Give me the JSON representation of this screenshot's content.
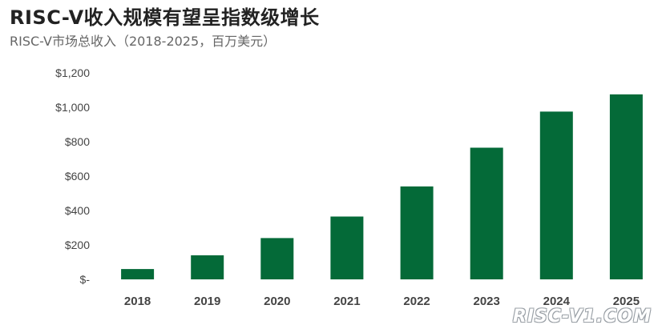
{
  "chart_data": {
    "type": "bar",
    "title": "RISC-V收入规模有望呈指数级增长",
    "subtitle": "RISC-V市场总收入（2018-2025，百万美元）",
    "categories": [
      "2018",
      "2019",
      "2020",
      "2021",
      "2022",
      "2023",
      "2024",
      "2025"
    ],
    "values": [
      60,
      140,
      240,
      365,
      540,
      765,
      975,
      1075
    ],
    "ylim": [
      0,
      1200
    ],
    "yticks": [
      0,
      200,
      400,
      600,
      800,
      1000,
      1200
    ],
    "ytick_labels": [
      "$-",
      "$200",
      "$400",
      "$600",
      "$800",
      "$1,000",
      "$1,200"
    ],
    "xlabel": "",
    "ylabel": "",
    "grid": false,
    "bar_color": "#046a38"
  },
  "watermark": "RISC-V1.COM"
}
